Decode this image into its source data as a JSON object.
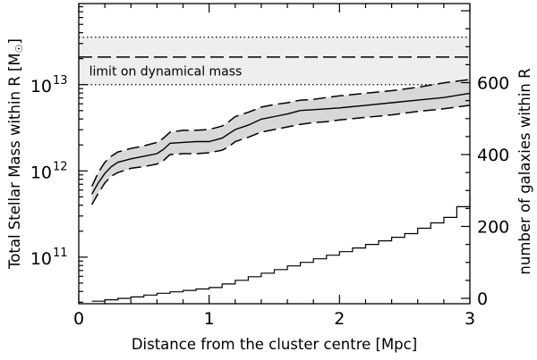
{
  "chart_data": {
    "type": "line",
    "xlabel": "Distance from the cluster centre [Mpc]",
    "ylabel_left": "Total Stellar Mass within R [M",
    "ylabel_left_symbol": "☉",
    "ylabel_left_close": "]",
    "ylabel_right": "number of galaxies within R",
    "xlim": [
      0,
      3
    ],
    "ylim_left_log10": [
      10.46,
      13.94
    ],
    "ylim_left_scale": "log",
    "ylim_right": [
      -15,
      820
    ],
    "x_ticks": [
      {
        "value": 0,
        "label": "0"
      },
      {
        "value": 1,
        "label": "1"
      },
      {
        "value": 2,
        "label": "2"
      },
      {
        "value": 3,
        "label": "3"
      }
    ],
    "y_left_ticks": [
      {
        "log10": 11,
        "base": "10",
        "exp": "11"
      },
      {
        "log10": 12,
        "base": "10",
        "exp": "12"
      },
      {
        "log10": 13,
        "base": "10",
        "exp": "13"
      }
    ],
    "y_right_ticks": [
      {
        "value": 0,
        "label": "0"
      },
      {
        "value": 200,
        "label": "200"
      },
      {
        "value": 400,
        "label": "400"
      },
      {
        "value": 600,
        "label": "600"
      }
    ],
    "annotation": "limit on dynamical mass",
    "dynamical_mass_limit_log10": {
      "low": 13.0,
      "mid": 13.32,
      "high": 13.55
    },
    "stellar_mass_log10": {
      "x": [
        0.1,
        0.15,
        0.2,
        0.25,
        0.3,
        0.4,
        0.5,
        0.6,
        0.65,
        0.7,
        0.8,
        0.9,
        1.0,
        1.1,
        1.15,
        1.2,
        1.3,
        1.4,
        1.5,
        1.6,
        1.7,
        1.8,
        1.9,
        2.0,
        2.2,
        2.4,
        2.6,
        2.8,
        3.0
      ],
      "median": [
        11.73,
        11.86,
        11.97,
        12.05,
        12.1,
        12.14,
        12.17,
        12.2,
        12.25,
        12.32,
        12.33,
        12.34,
        12.34,
        12.38,
        12.43,
        12.48,
        12.53,
        12.6,
        12.63,
        12.66,
        12.7,
        12.71,
        12.72,
        12.73,
        12.76,
        12.79,
        12.82,
        12.85,
        12.9
      ],
      "upper": [
        11.82,
        11.98,
        12.1,
        12.17,
        12.22,
        12.26,
        12.29,
        12.33,
        12.38,
        12.45,
        12.47,
        12.47,
        12.48,
        12.52,
        12.57,
        12.63,
        12.68,
        12.74,
        12.77,
        12.79,
        12.82,
        12.83,
        12.85,
        12.87,
        12.9,
        12.93,
        12.97,
        13.02,
        13.06
      ],
      "lower": [
        11.61,
        11.74,
        11.86,
        11.94,
        11.98,
        12.03,
        12.05,
        12.08,
        12.12,
        12.19,
        12.2,
        12.2,
        12.21,
        12.24,
        12.28,
        12.34,
        12.39,
        12.45,
        12.48,
        12.51,
        12.54,
        12.56,
        12.57,
        12.59,
        12.62,
        12.65,
        12.69,
        12.72,
        12.76
      ]
    },
    "galaxy_count_step": {
      "x": [
        0.1,
        0.2,
        0.3,
        0.4,
        0.5,
        0.6,
        0.7,
        0.8,
        0.9,
        1.0,
        1.1,
        1.2,
        1.3,
        1.4,
        1.5,
        1.6,
        1.7,
        1.8,
        1.9,
        2.0,
        2.1,
        2.2,
        2.3,
        2.4,
        2.5,
        2.6,
        2.7,
        2.8,
        2.9,
        3.0
      ],
      "count": [
        -8,
        -4,
        0,
        4,
        9,
        14,
        18,
        22,
        26,
        30,
        40,
        50,
        60,
        70,
        80,
        90,
        100,
        110,
        120,
        130,
        140,
        150,
        160,
        170,
        180,
        195,
        210,
        225,
        255,
        290
      ]
    }
  }
}
